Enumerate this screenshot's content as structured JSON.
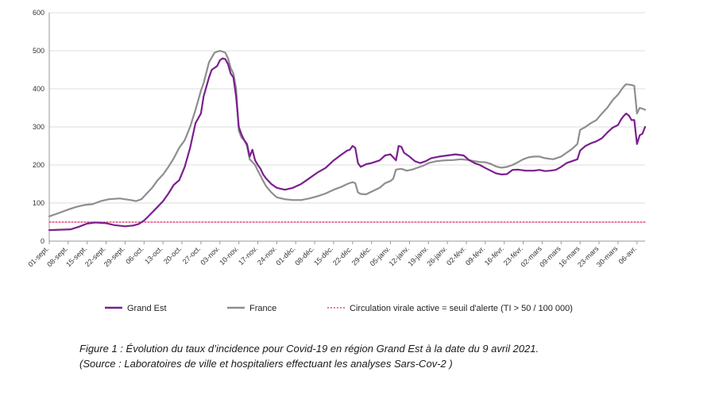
{
  "chart_data": {
    "type": "line",
    "ylim": [
      0,
      600
    ],
    "y_ticks": [
      "0",
      "100",
      "200",
      "300",
      "400",
      "500",
      "600"
    ],
    "x_tick_labels": [
      "01-sept.",
      "08-sept.",
      "15-sept.",
      "22-sept.",
      "29-sept.",
      "06-oct.",
      "13-oct.",
      "20-oct.",
      "27-oct.",
      "03-nov.",
      "10-nov.",
      "17-nov.",
      "24-nov.",
      "01-déc.",
      "08-déc.",
      "15-déc.",
      "22-déc.",
      "29-déc.",
      "05-janv.",
      "12-janv.",
      "19-janv.",
      "26-janv.",
      "02-févr.",
      "09-févr.",
      "16-févr.",
      "23-févr.",
      "02-mars",
      "09-mars",
      "16-mars",
      "23-mars",
      "30-mars",
      "06-avr."
    ],
    "x_tick_day_offsets": [
      0,
      7,
      14,
      21,
      28,
      35,
      42,
      49,
      56,
      63,
      70,
      77,
      84,
      91,
      98,
      105,
      112,
      119,
      126,
      133,
      140,
      147,
      154,
      161,
      168,
      175,
      182,
      189,
      196,
      203,
      210,
      217
    ],
    "x_range_days": [
      0,
      220
    ],
    "grid": "horizontal",
    "legend_position": "bottom",
    "series": [
      {
        "name": "Grand Est",
        "color": "#7b1f8f",
        "points": [
          [
            0,
            29
          ],
          [
            4,
            30
          ],
          [
            8,
            31
          ],
          [
            11,
            38
          ],
          [
            14,
            46
          ],
          [
            17,
            49
          ],
          [
            21,
            47
          ],
          [
            24,
            42
          ],
          [
            28,
            39
          ],
          [
            31,
            41
          ],
          [
            33,
            45
          ],
          [
            35,
            54
          ],
          [
            37,
            68
          ],
          [
            40,
            90
          ],
          [
            42,
            105
          ],
          [
            44,
            125
          ],
          [
            46,
            148
          ],
          [
            48,
            160
          ],
          [
            50,
            195
          ],
          [
            52,
            245
          ],
          [
            54,
            310
          ],
          [
            56,
            335
          ],
          [
            57,
            380
          ],
          [
            59,
            430
          ],
          [
            60,
            450
          ],
          [
            61,
            455
          ],
          [
            62,
            460
          ],
          [
            63,
            475
          ],
          [
            64,
            480
          ],
          [
            65,
            478
          ],
          [
            66,
            465
          ],
          [
            67,
            440
          ],
          [
            68,
            430
          ],
          [
            69,
            380
          ],
          [
            70,
            300
          ],
          [
            71,
            280
          ],
          [
            72,
            265
          ],
          [
            73,
            255
          ],
          [
            74,
            222
          ],
          [
            75,
            240
          ],
          [
            76,
            212
          ],
          [
            77,
            200
          ],
          [
            78,
            190
          ],
          [
            79,
            175
          ],
          [
            80,
            165
          ],
          [
            82,
            150
          ],
          [
            84,
            140
          ],
          [
            87,
            135
          ],
          [
            90,
            140
          ],
          [
            93,
            150
          ],
          [
            96,
            165
          ],
          [
            99,
            180
          ],
          [
            102,
            192
          ],
          [
            105,
            212
          ],
          [
            108,
            228
          ],
          [
            110,
            238
          ],
          [
            111,
            240
          ],
          [
            112,
            250
          ],
          [
            113,
            245
          ],
          [
            114,
            205
          ],
          [
            115,
            195
          ],
          [
            117,
            202
          ],
          [
            119,
            205
          ],
          [
            122,
            212
          ],
          [
            124,
            225
          ],
          [
            126,
            228
          ],
          [
            127,
            220
          ],
          [
            128,
            212
          ],
          [
            129,
            250
          ],
          [
            130,
            248
          ],
          [
            131,
            232
          ],
          [
            133,
            222
          ],
          [
            135,
            210
          ],
          [
            137,
            205
          ],
          [
            139,
            210
          ],
          [
            141,
            218
          ],
          [
            144,
            222
          ],
          [
            147,
            225
          ],
          [
            150,
            228
          ],
          [
            153,
            225
          ],
          [
            155,
            213
          ],
          [
            157,
            205
          ],
          [
            159,
            200
          ],
          [
            161,
            192
          ],
          [
            163,
            185
          ],
          [
            165,
            178
          ],
          [
            167,
            175
          ],
          [
            169,
            176
          ],
          [
            171,
            187
          ],
          [
            173,
            188
          ],
          [
            176,
            185
          ],
          [
            179,
            185
          ],
          [
            181,
            187
          ],
          [
            183,
            184
          ],
          [
            185,
            185
          ],
          [
            187,
            187
          ],
          [
            189,
            195
          ],
          [
            191,
            205
          ],
          [
            193,
            210
          ],
          [
            195,
            215
          ],
          [
            196,
            238
          ],
          [
            198,
            250
          ],
          [
            200,
            257
          ],
          [
            202,
            262
          ],
          [
            204,
            270
          ],
          [
            206,
            285
          ],
          [
            208,
            298
          ],
          [
            210,
            305
          ],
          [
            211,
            318
          ],
          [
            212,
            328
          ],
          [
            213,
            335
          ],
          [
            214,
            330
          ],
          [
            215,
            318
          ],
          [
            216,
            318
          ],
          [
            217,
            255
          ],
          [
            218,
            278
          ],
          [
            219,
            282
          ],
          [
            220,
            300
          ]
        ]
      },
      {
        "name": "France",
        "color": "#8e8e8e",
        "points": [
          [
            0,
            65
          ],
          [
            4,
            75
          ],
          [
            7,
            83
          ],
          [
            10,
            90
          ],
          [
            13,
            95
          ],
          [
            16,
            97
          ],
          [
            19,
            105
          ],
          [
            22,
            110
          ],
          [
            26,
            112
          ],
          [
            30,
            108
          ],
          [
            32,
            105
          ],
          [
            34,
            110
          ],
          [
            36,
            125
          ],
          [
            38,
            140
          ],
          [
            40,
            160
          ],
          [
            42,
            175
          ],
          [
            44,
            195
          ],
          [
            46,
            218
          ],
          [
            48,
            245
          ],
          [
            50,
            265
          ],
          [
            52,
            300
          ],
          [
            54,
            345
          ],
          [
            56,
            395
          ],
          [
            57,
            415
          ],
          [
            59,
            470
          ],
          [
            61,
            495
          ],
          [
            63,
            500
          ],
          [
            65,
            495
          ],
          [
            66,
            480
          ],
          [
            67,
            455
          ],
          [
            68,
            440
          ],
          [
            69,
            400
          ],
          [
            70,
            290
          ],
          [
            71,
            272
          ],
          [
            72,
            265
          ],
          [
            73,
            250
          ],
          [
            74,
            215
          ],
          [
            75,
            208
          ],
          [
            76,
            200
          ],
          [
            77,
            185
          ],
          [
            78,
            172
          ],
          [
            79,
            158
          ],
          [
            80,
            145
          ],
          [
            82,
            128
          ],
          [
            84,
            115
          ],
          [
            87,
            110
          ],
          [
            90,
            108
          ],
          [
            93,
            108
          ],
          [
            96,
            112
          ],
          [
            99,
            118
          ],
          [
            102,
            125
          ],
          [
            105,
            135
          ],
          [
            108,
            143
          ],
          [
            110,
            150
          ],
          [
            112,
            155
          ],
          [
            113,
            152
          ],
          [
            114,
            128
          ],
          [
            115,
            124
          ],
          [
            117,
            123
          ],
          [
            119,
            130
          ],
          [
            122,
            140
          ],
          [
            124,
            152
          ],
          [
            126,
            158
          ],
          [
            127,
            164
          ],
          [
            128,
            188
          ],
          [
            130,
            190
          ],
          [
            132,
            185
          ],
          [
            134,
            188
          ],
          [
            136,
            193
          ],
          [
            138,
            198
          ],
          [
            140,
            205
          ],
          [
            143,
            210
          ],
          [
            146,
            212
          ],
          [
            149,
            213
          ],
          [
            152,
            215
          ],
          [
            155,
            213
          ],
          [
            157,
            210
          ],
          [
            159,
            208
          ],
          [
            161,
            207
          ],
          [
            163,
            203
          ],
          [
            165,
            196
          ],
          [
            167,
            193
          ],
          [
            169,
            195
          ],
          [
            171,
            200
          ],
          [
            173,
            207
          ],
          [
            175,
            215
          ],
          [
            177,
            220
          ],
          [
            179,
            222
          ],
          [
            181,
            222
          ],
          [
            183,
            218
          ],
          [
            186,
            215
          ],
          [
            189,
            222
          ],
          [
            191,
            232
          ],
          [
            193,
            242
          ],
          [
            195,
            255
          ],
          [
            196,
            292
          ],
          [
            198,
            300
          ],
          [
            200,
            310
          ],
          [
            202,
            318
          ],
          [
            204,
            335
          ],
          [
            206,
            350
          ],
          [
            208,
            370
          ],
          [
            210,
            385
          ],
          [
            211,
            395
          ],
          [
            212,
            405
          ],
          [
            213,
            412
          ],
          [
            215,
            410
          ],
          [
            216,
            408
          ],
          [
            217,
            335
          ],
          [
            218,
            350
          ],
          [
            219,
            348
          ],
          [
            220,
            345
          ]
        ]
      },
      {
        "name": "Circulation virale active = seuil d'alerte (TI > 50 / 100 000)",
        "color": "#e0245e",
        "style": "dotted",
        "points": [
          [
            0,
            50
          ],
          [
            220,
            50
          ]
        ]
      }
    ]
  },
  "legend": [
    {
      "label": "Grand Est",
      "color": "#7b1f8f",
      "style": "solid"
    },
    {
      "label": "France",
      "color": "#8e8e8e",
      "style": "solid"
    },
    {
      "label": "Circulation virale active = seuil d'alerte (TI > 50 / 100 000)",
      "color": "#e0245e",
      "style": "dotted"
    }
  ],
  "caption": {
    "line1": "Figure 1 : Évolution du taux d’incidence pour Covid-19 en région Grand Est à la date du 9 avril 2021.",
    "line2": "(Source : Laboratoires de ville et hospitaliers effectuant les analyses Sars-Cov-2 )"
  }
}
